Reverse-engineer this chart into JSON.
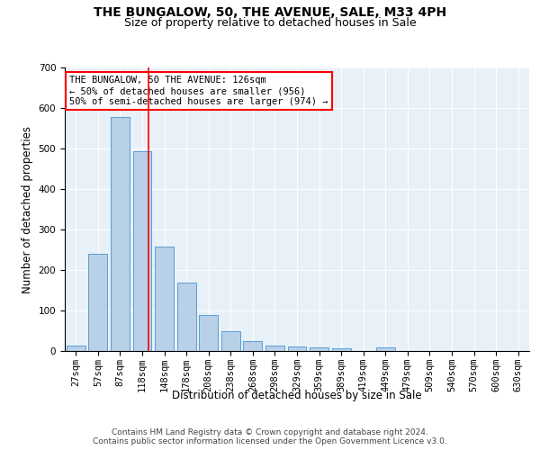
{
  "title": "THE BUNGALOW, 50, THE AVENUE, SALE, M33 4PH",
  "subtitle": "Size of property relative to detached houses in Sale",
  "xlabel": "Distribution of detached houses by size in Sale",
  "ylabel": "Number of detached properties",
  "bar_color": "#b8d0e8",
  "bar_edge_color": "#5a9fd4",
  "background_color": "#e8f0f8",
  "grid_color": "#ffffff",
  "categories": [
    "27sqm",
    "57sqm",
    "87sqm",
    "118sqm",
    "148sqm",
    "178sqm",
    "208sqm",
    "238sqm",
    "268sqm",
    "298sqm",
    "329sqm",
    "359sqm",
    "389sqm",
    "419sqm",
    "449sqm",
    "479sqm",
    "509sqm",
    "540sqm",
    "570sqm",
    "600sqm",
    "630sqm"
  ],
  "values": [
    13,
    240,
    578,
    493,
    257,
    168,
    88,
    48,
    24,
    13,
    11,
    10,
    6,
    0,
    8,
    0,
    0,
    0,
    0,
    0,
    0
  ],
  "ylim": [
    0,
    700
  ],
  "yticks": [
    0,
    100,
    200,
    300,
    400,
    500,
    600,
    700
  ],
  "red_line_x": 3.27,
  "annotation_text": "THE BUNGALOW, 50 THE AVENUE: 126sqm\n← 50% of detached houses are smaller (956)\n50% of semi-detached houses are larger (974) →",
  "footnote": "Contains HM Land Registry data © Crown copyright and database right 2024.\nContains public sector information licensed under the Open Government Licence v3.0.",
  "title_fontsize": 10,
  "subtitle_fontsize": 9,
  "tick_fontsize": 7.5,
  "ylabel_fontsize": 8.5,
  "xlabel_fontsize": 8.5,
  "annotation_fontsize": 7.5,
  "footnote_fontsize": 6.5
}
